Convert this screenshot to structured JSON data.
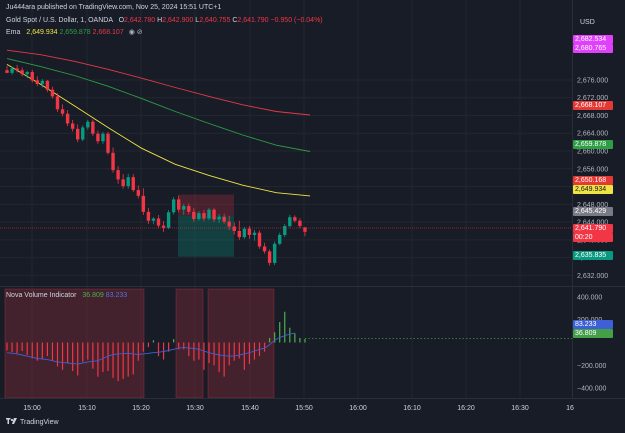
{
  "header": {
    "published_line": "Ju444ara published on TradingView.com, Nov 25, 2024 15:51 UTC+1",
    "symbol": "Gold Spot / U.S. Dollar, 1, OANDA",
    "ohlc": {
      "o_label": "O",
      "o": "2,642.780",
      "h_label": "H",
      "h": "2,642.900",
      "l_label": "L",
      "l": "2,640.755",
      "c_label": "C",
      "c": "2,641.790",
      "change": "−0.950 (−0.04%)"
    },
    "ema": {
      "name": "Ema",
      "values": [
        "2,649.934",
        "2,659.878",
        "2,668.107"
      ],
      "colors": [
        "#f0e442",
        "#2e9e45",
        "#e33a45"
      ]
    }
  },
  "price_axis": {
    "currency": "USD",
    "ticks": [
      "2,676.000",
      "2,672.000",
      "2,668.000",
      "2,664.000",
      "2,660.000",
      "2,656.000",
      "2,652.000",
      "2,648.000",
      "2,644.000",
      "2,640.000",
      "2,636.000",
      "2,632.000"
    ],
    "badges": [
      {
        "label": "2,682.534",
        "color": "#e040fb"
      },
      {
        "label": "2,680.765",
        "color": "#e040fb"
      },
      {
        "label": "2,668.107",
        "color": "#e53935"
      },
      {
        "label": "2,659.878",
        "color": "#2e9e45"
      },
      {
        "label": "2,650.168",
        "color": "#e53935"
      },
      {
        "label": "2,649.934",
        "color": "#f0e442"
      },
      {
        "label": "2,645.429",
        "color": "#787b86"
      },
      {
        "label": "2,641.790",
        "color": "#f23645"
      },
      {
        "label": "00:20",
        "color": "#f23645"
      },
      {
        "label": "2,635.835",
        "color": "#089981"
      }
    ]
  },
  "indicator": {
    "name": "Nova Volume Indicator",
    "value1": "36.809",
    "value2": "83.233",
    "value1_color": "#4caf50",
    "value2_color": "#5b6ee1",
    "ticks": [
      "400.000",
      "200.000",
      "−200.000",
      "−400.000"
    ],
    "badges": [
      {
        "label": "83.233",
        "color": "#3f5fd6"
      },
      {
        "label": "36.809",
        "color": "#43a047"
      }
    ]
  },
  "time_axis": {
    "labels": [
      "15:00",
      "15:10",
      "15:20",
      "15:30",
      "15:40",
      "15:50",
      "16:00",
      "16:10",
      "16:20",
      "16:30",
      "16"
    ]
  },
  "footer": {
    "brand": "TradingView"
  },
  "chart_data": [
    {
      "type": "candlestick",
      "title": "Gold Spot / U.S. Dollar, 1, OANDA",
      "xlabel": "",
      "ylabel": "USD",
      "ylim": [
        2630.5,
        2685
      ],
      "candles": [
        {
          "o": 2678.2,
          "h": 2679.2,
          "l": 2677.5,
          "c": 2677.6
        },
        {
          "o": 2677.6,
          "h": 2679.0,
          "l": 2677.2,
          "c": 2678.6
        },
        {
          "o": 2678.6,
          "h": 2679.4,
          "l": 2677.7,
          "c": 2678.2
        },
        {
          "o": 2678.2,
          "h": 2678.8,
          "l": 2676.8,
          "c": 2677.3
        },
        {
          "o": 2677.3,
          "h": 2678.1,
          "l": 2676.4,
          "c": 2677.8
        },
        {
          "o": 2677.8,
          "h": 2678.3,
          "l": 2675.4,
          "c": 2675.9
        },
        {
          "o": 2675.9,
          "h": 2676.8,
          "l": 2674.6,
          "c": 2675.1
        },
        {
          "o": 2675.1,
          "h": 2676.2,
          "l": 2674.3,
          "c": 2675.8
        },
        {
          "o": 2675.8,
          "h": 2676.0,
          "l": 2673.3,
          "c": 2673.8
        },
        {
          "o": 2673.8,
          "h": 2674.5,
          "l": 2671.8,
          "c": 2672.3
        },
        {
          "o": 2672.3,
          "h": 2673.0,
          "l": 2668.8,
          "c": 2669.4
        },
        {
          "o": 2669.4,
          "h": 2670.5,
          "l": 2667.8,
          "c": 2668.4
        },
        {
          "o": 2668.4,
          "h": 2669.2,
          "l": 2665.6,
          "c": 2666.2
        },
        {
          "o": 2666.2,
          "h": 2667.0,
          "l": 2664.4,
          "c": 2665.0
        },
        {
          "o": 2665.0,
          "h": 2666.0,
          "l": 2662.0,
          "c": 2662.6
        },
        {
          "o": 2662.6,
          "h": 2665.8,
          "l": 2662.2,
          "c": 2665.3
        },
        {
          "o": 2665.3,
          "h": 2667.0,
          "l": 2664.8,
          "c": 2666.6
        },
        {
          "o": 2666.6,
          "h": 2667.1,
          "l": 2663.4,
          "c": 2663.9
        },
        {
          "o": 2663.9,
          "h": 2664.6,
          "l": 2661.6,
          "c": 2662.2
        },
        {
          "o": 2662.2,
          "h": 2664.3,
          "l": 2661.6,
          "c": 2663.9
        },
        {
          "o": 2663.9,
          "h": 2664.3,
          "l": 2659.2,
          "c": 2659.6
        },
        {
          "o": 2659.6,
          "h": 2660.8,
          "l": 2655.1,
          "c": 2655.7
        },
        {
          "o": 2655.7,
          "h": 2656.6,
          "l": 2652.6,
          "c": 2653.6
        },
        {
          "o": 2653.6,
          "h": 2654.8,
          "l": 2651.5,
          "c": 2652.1
        },
        {
          "o": 2652.1,
          "h": 2654.9,
          "l": 2651.5,
          "c": 2654.1
        },
        {
          "o": 2654.1,
          "h": 2654.8,
          "l": 2650.8,
          "c": 2651.2
        },
        {
          "o": 2651.2,
          "h": 2652.2,
          "l": 2649.3,
          "c": 2649.9
        },
        {
          "o": 2649.9,
          "h": 2651.6,
          "l": 2645.6,
          "c": 2646.3
        },
        {
          "o": 2646.3,
          "h": 2647.2,
          "l": 2643.6,
          "c": 2644.3
        },
        {
          "o": 2644.3,
          "h": 2645.1,
          "l": 2643.5,
          "c": 2644.8
        },
        {
          "o": 2644.8,
          "h": 2645.6,
          "l": 2642.6,
          "c": 2643.2
        },
        {
          "o": 2643.2,
          "h": 2644.2,
          "l": 2641.8,
          "c": 2642.7
        },
        {
          "o": 2642.7,
          "h": 2646.7,
          "l": 2642.4,
          "c": 2646.2
        },
        {
          "o": 2646.2,
          "h": 2649.6,
          "l": 2645.7,
          "c": 2649.1
        },
        {
          "o": 2649.1,
          "h": 2649.9,
          "l": 2646.2,
          "c": 2646.8
        },
        {
          "o": 2646.8,
          "h": 2648.1,
          "l": 2645.6,
          "c": 2647.6
        },
        {
          "o": 2647.6,
          "h": 2648.2,
          "l": 2645.7,
          "c": 2646.3
        },
        {
          "o": 2646.3,
          "h": 2647.2,
          "l": 2644.1,
          "c": 2644.7
        },
        {
          "o": 2644.7,
          "h": 2646.5,
          "l": 2644.3,
          "c": 2646.0
        },
        {
          "o": 2646.0,
          "h": 2646.7,
          "l": 2644.2,
          "c": 2644.8
        },
        {
          "o": 2644.8,
          "h": 2647.2,
          "l": 2644.4,
          "c": 2646.8
        },
        {
          "o": 2646.8,
          "h": 2647.1,
          "l": 2644.0,
          "c": 2644.6
        },
        {
          "o": 2644.6,
          "h": 2645.8,
          "l": 2643.8,
          "c": 2645.2
        },
        {
          "o": 2645.2,
          "h": 2645.9,
          "l": 2643.6,
          "c": 2644.1
        },
        {
          "o": 2644.1,
          "h": 2645.4,
          "l": 2642.2,
          "c": 2643.0
        },
        {
          "o": 2643.0,
          "h": 2643.9,
          "l": 2641.2,
          "c": 2642.0
        },
        {
          "o": 2642.0,
          "h": 2644.3,
          "l": 2640.0,
          "c": 2640.6
        },
        {
          "o": 2640.6,
          "h": 2642.9,
          "l": 2640.2,
          "c": 2642.5
        },
        {
          "o": 2642.5,
          "h": 2643.1,
          "l": 2640.2,
          "c": 2641.1
        },
        {
          "o": 2641.1,
          "h": 2642.2,
          "l": 2639.8,
          "c": 2641.6
        },
        {
          "o": 2641.6,
          "h": 2642.1,
          "l": 2638.0,
          "c": 2638.5
        },
        {
          "o": 2638.5,
          "h": 2639.3,
          "l": 2636.9,
          "c": 2637.4
        },
        {
          "o": 2637.4,
          "h": 2637.8,
          "l": 2634.2,
          "c": 2634.8
        },
        {
          "o": 2634.8,
          "h": 2639.6,
          "l": 2634.3,
          "c": 2639.1
        },
        {
          "o": 2639.1,
          "h": 2641.6,
          "l": 2638.8,
          "c": 2641.1
        },
        {
          "o": 2641.1,
          "h": 2643.6,
          "l": 2640.6,
          "c": 2643.1
        },
        {
          "o": 2643.1,
          "h": 2645.6,
          "l": 2642.8,
          "c": 2645.1
        },
        {
          "o": 2645.1,
          "h": 2645.5,
          "l": 2643.9,
          "c": 2644.3
        },
        {
          "o": 2644.3,
          "h": 2644.8,
          "l": 2642.6,
          "c": 2643.1
        },
        {
          "o": 2642.8,
          "h": 2642.9,
          "l": 2640.8,
          "c": 2641.8
        }
      ],
      "ema_lines": [
        {
          "color": "#f0e442",
          "values": [
            2679.5,
            2675.0,
            2670.2,
            2665.3,
            2660.6,
            2657.0,
            2654.5,
            2652.3,
            2650.6,
            2649.9
          ]
        },
        {
          "color": "#2e9e45",
          "values": [
            2680.8,
            2679.0,
            2677.0,
            2674.6,
            2671.8,
            2668.9,
            2666.2,
            2663.6,
            2661.3,
            2659.9
          ]
        },
        {
          "color": "#e33a45",
          "values": [
            2682.7,
            2681.7,
            2680.2,
            2678.4,
            2676.4,
            2674.3,
            2672.3,
            2670.4,
            2668.9,
            2668.1
          ]
        }
      ],
      "last_price": 2641.79
    },
    {
      "type": "bar",
      "title": "Nova Volume Indicator",
      "ylim": [
        -470,
        470
      ],
      "values": [
        -70,
        -85,
        -95,
        -75,
        -110,
        -140,
        -160,
        -150,
        -120,
        -160,
        -210,
        -240,
        -180,
        -250,
        -290,
        -170,
        -150,
        -230,
        -300,
        -260,
        -250,
        -310,
        -340,
        -320,
        -300,
        -280,
        -160,
        -80,
        -40,
        20,
        -120,
        -150,
        -80,
        30,
        -60,
        -60,
        -120,
        -160,
        -150,
        -240,
        -180,
        -200,
        -260,
        -300,
        -200,
        -160,
        -140,
        -240,
        -190,
        -150,
        -120,
        -80,
        40,
        90,
        180,
        270,
        130,
        80,
        40,
        30
      ],
      "line": [
        -90,
        -95,
        -100,
        -110,
        -120,
        -130,
        -140,
        -145,
        -150,
        -160,
        -170,
        -175,
        -180,
        -185,
        -190,
        -180,
        -170,
        -165,
        -160,
        -140,
        -120,
        -105,
        -100,
        -98,
        -95,
        -100,
        -105,
        -100,
        -95,
        -90,
        -85,
        -80,
        -70,
        -60,
        -50,
        -45,
        -48,
        -52,
        -60,
        -75,
        -90,
        -100,
        -110,
        -115,
        -120,
        -118,
        -110,
        -100,
        -90,
        -75,
        -60,
        -50,
        -20,
        20,
        45,
        60,
        75,
        83
      ],
      "legend_lines": [
        36.809,
        83.233
      ]
    }
  ]
}
